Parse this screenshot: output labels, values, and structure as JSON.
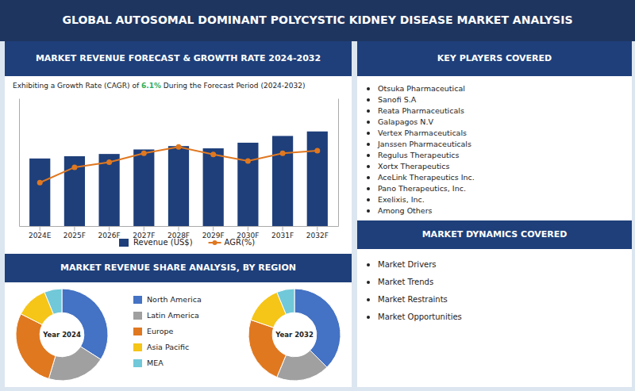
{
  "title": "GLOBAL AUTOSOMAL DOMINANT POLYCYSTIC KIDNEY DISEASE MARKET ANALYSIS",
  "pie_section_title": "MARKET REVENUE SHARE ANALYSIS, BY REGION",
  "key_players_title": "KEY PLAYERS COVERED",
  "key_players": [
    "Otsuka Pharmaceutical",
    "Sanofi S.A",
    "Reata Pharmaceuticals",
    "Galapagos N.V",
    "Vertex Pharmaceuticals",
    "Janssen Pharmaceuticals",
    "Regulus Therapeutics",
    "Xortx Therapeutics",
    "AceLink Therapeutics Inc.",
    "Pano Therapeutics, Inc.",
    "Exelixis, Inc.",
    "Among Others"
  ],
  "dynamics_title": "MARKET DYNAMICS COVERED",
  "dynamics": [
    "Market Drivers",
    "Market Trends",
    "Market Restraints",
    "Market Opportunities"
  ],
  "chart_data": [
    {
      "type": "bar",
      "title": "MARKET REVENUE FORECAST & GROWTH RATE 2024-2032",
      "subtitle": [
        "Exhibiting a Growth Rate (CAGR) of ",
        "6.1%",
        " During the Forecast Period (2024-2032)"
      ],
      "categories": [
        "2024E",
        "2025F",
        "2026F",
        "2027F",
        "2028F",
        "2029F",
        "2030F",
        "2031F",
        "2032F"
      ],
      "series": [
        {
          "name": "Revenue (US$)",
          "type": "bar",
          "color": "#1e3f7a",
          "values": [
            3.0,
            3.1,
            3.2,
            3.4,
            3.55,
            3.45,
            3.7,
            4.0,
            4.2
          ]
        },
        {
          "name": "AGR(%)",
          "type": "line",
          "color": "#e07820",
          "marker": "circle",
          "axis": "y2",
          "values": [
            5.2,
            5.8,
            6.0,
            6.35,
            6.6,
            6.3,
            6.05,
            6.35,
            6.45
          ]
        }
      ],
      "ylim": [
        0,
        5.67
      ],
      "y2lim": [
        3.5,
        8.5
      ],
      "tick_labels": "x",
      "legend": "bottom",
      "grid": false
    },
    {
      "type": "pie",
      "title": "Year 2024",
      "categories": [
        "North America",
        "Latin America",
        "Europe",
        "Asia Pacific",
        "MEA"
      ],
      "values": [
        33,
        20,
        27,
        11,
        6
      ],
      "colors": [
        "#4472c4",
        "#a0a0a0",
        "#e07820",
        "#f5c518",
        "#70c8d8"
      ]
    },
    {
      "type": "pie",
      "title": "Year 2032",
      "categories": [
        "North America",
        "Latin America",
        "Europe",
        "Asia Pacific",
        "MEA"
      ],
      "values": [
        36,
        18,
        23,
        13,
        6
      ],
      "colors": [
        "#4472c4",
        "#a0a0a0",
        "#e07820",
        "#f5c518",
        "#70c8d8"
      ]
    }
  ]
}
